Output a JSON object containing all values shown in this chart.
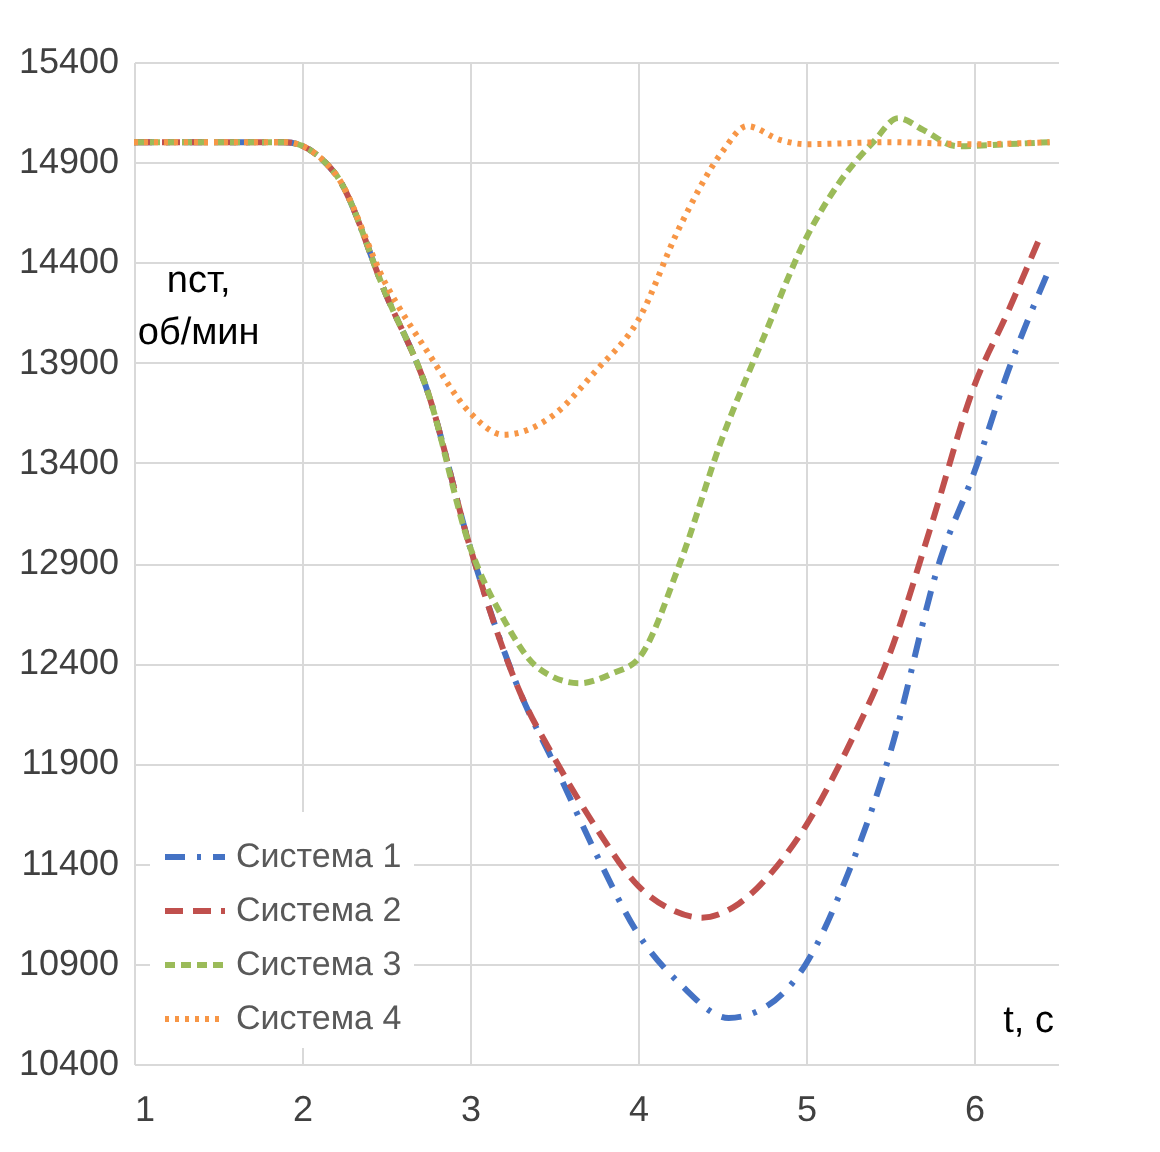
{
  "chart_data": {
    "type": "line",
    "xlabel": "t, c",
    "ylabel": "nст, об/мин",
    "xlim": [
      1,
      6.5
    ],
    "xticks": [
      1,
      2,
      3,
      4,
      5,
      6
    ],
    "ylim": [
      10400,
      15400
    ],
    "yticks": [
      10400,
      10900,
      11400,
      11900,
      12400,
      12900,
      13400,
      13900,
      14400,
      14900,
      15400
    ],
    "grid": true,
    "legend": "bottom left",
    "marker": "none",
    "series": [
      {
        "name": "Система 1",
        "color": "#4472c4",
        "line_style": "dashdot",
        "x": [
          1,
          1.5,
          1.9,
          2.2,
          2.5,
          2.75,
          3,
          3.3,
          3.5,
          3.75,
          4,
          4.25,
          4.54,
          4.75,
          5,
          5.25,
          5.5,
          5.8,
          6,
          6.2,
          6.45
        ],
        "values": [
          15000,
          15000,
          15000,
          14840,
          14240,
          13750,
          12980,
          12250,
          11900,
          11450,
          11050,
          10800,
          10630,
          10680,
          10900,
          11350,
          11950,
          12920,
          13350,
          13850,
          14370
        ]
      },
      {
        "name": "Система 2",
        "color": "#c0504d",
        "line_style": "dashed",
        "x": [
          1,
          1.5,
          1.9,
          2.2,
          2.5,
          2.75,
          3,
          3.3,
          3.5,
          3.75,
          4,
          4.2,
          4.38,
          4.6,
          4.8,
          5,
          5.25,
          5.5,
          5.75,
          6,
          6.2,
          6.4
        ],
        "values": [
          15000,
          15000,
          15000,
          14840,
          14240,
          13750,
          12980,
          12250,
          11930,
          11580,
          11290,
          11170,
          11130,
          11200,
          11360,
          11590,
          11980,
          12450,
          13100,
          13780,
          14150,
          14540
        ]
      },
      {
        "name": "Система 3",
        "color": "#9bbb59",
        "line_style": "dashed",
        "x": [
          1,
          1.5,
          1.9,
          2.2,
          2.5,
          2.75,
          3,
          3.2,
          3.4,
          3.65,
          3.85,
          4,
          4.25,
          4.5,
          4.75,
          5,
          5.2,
          5.4,
          5.55,
          5.7,
          5.9,
          6.2,
          6.45
        ],
        "values": [
          15000,
          15000,
          15000,
          14840,
          14240,
          13750,
          12980,
          12620,
          12380,
          12300,
          12350,
          12420,
          12900,
          13520,
          14030,
          14520,
          14800,
          15000,
          15120,
          15060,
          14980,
          14990,
          15000
        ]
      },
      {
        "name": "Система 4",
        "color": "#f79646",
        "line_style": "dotted",
        "x": [
          1,
          1.5,
          1.9,
          2.2,
          2.5,
          2.75,
          3,
          3.2,
          3.5,
          3.75,
          4,
          4.25,
          4.5,
          4.65,
          4.85,
          5,
          5.5,
          6,
          6.45
        ],
        "values": [
          15000,
          15000,
          15000,
          14840,
          14290,
          13950,
          13650,
          13540,
          13640,
          13860,
          14110,
          14580,
          14950,
          15080,
          15010,
          14990,
          15000,
          14990,
          15000
        ]
      }
    ]
  }
}
